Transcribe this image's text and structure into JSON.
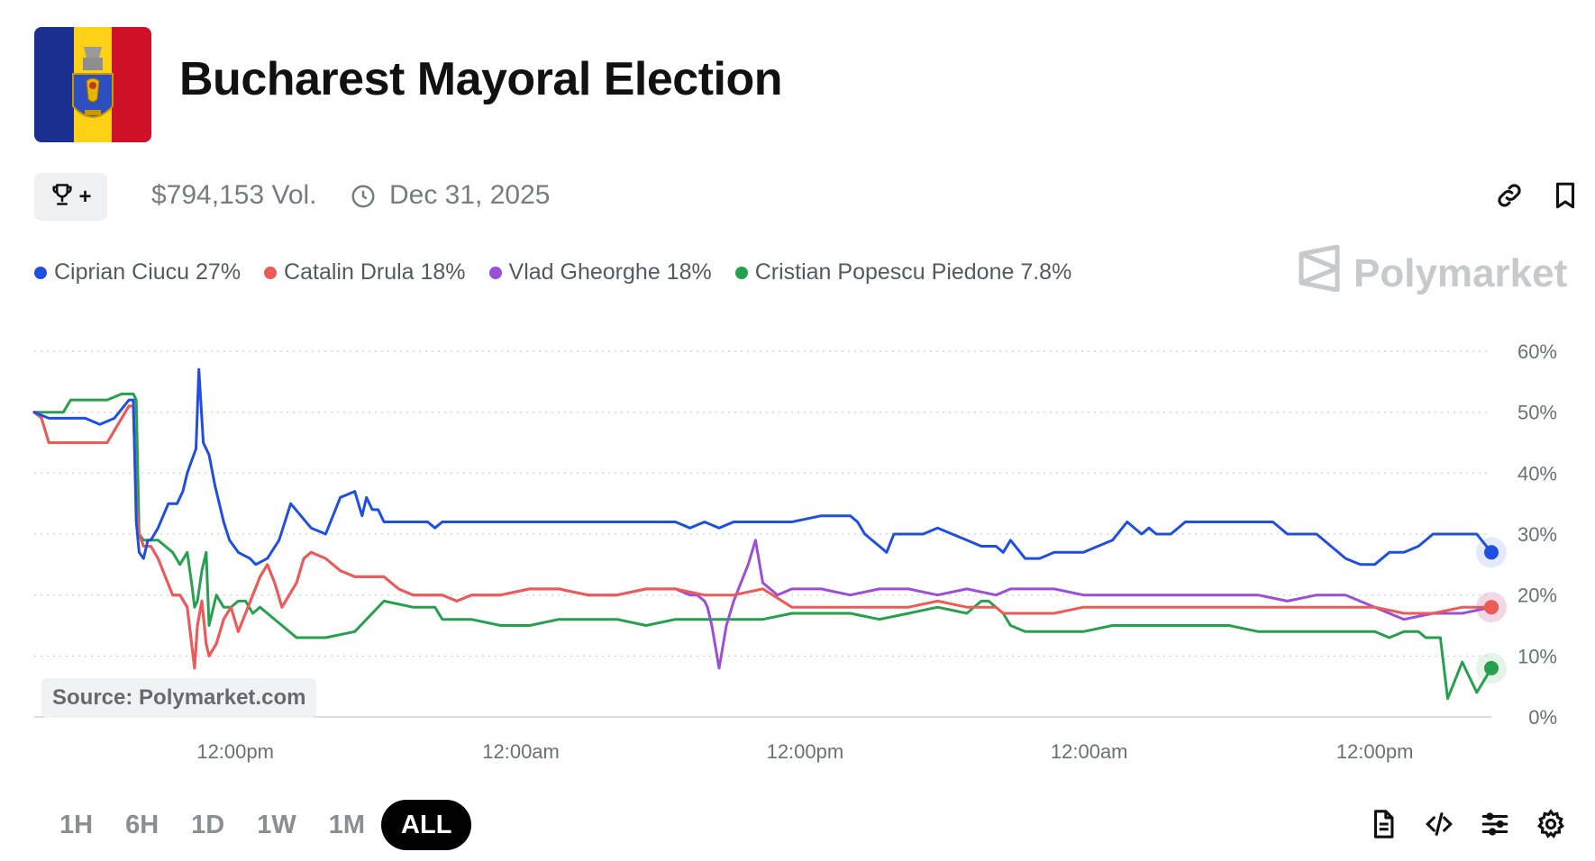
{
  "header": {
    "title": "Bucharest Mayoral Election",
    "volume": "$794,153 Vol.",
    "end_date": "Dec 31, 2025",
    "flag_colors": [
      "#1a2f8f",
      "#fcd116",
      "#ce1126"
    ]
  },
  "actions": {
    "trophy_label": "+",
    "icons": [
      "trophy-icon",
      "clock-icon",
      "link-icon",
      "bookmark-icon"
    ]
  },
  "brand": "Polymarket",
  "source": "Source: Polymarket.com",
  "time_ranges": [
    "1H",
    "6H",
    "1D",
    "1W",
    "1M",
    "ALL"
  ],
  "selected_range": "ALL",
  "bottom_icons": [
    "document-icon",
    "code-icon",
    "sliders-icon",
    "gear-icon"
  ],
  "chart_data": {
    "type": "line",
    "title": "",
    "xlabel": "",
    "ylabel": "",
    "ylim": [
      0,
      60
    ],
    "y_ticks": [
      "60%",
      "50%",
      "40%",
      "30%",
      "20%",
      "10%",
      "0%"
    ],
    "y_tick_values": [
      60,
      50,
      40,
      30,
      20,
      10,
      0
    ],
    "xlim": [
      0,
      1000
    ],
    "x_ticks": [
      {
        "label": "12:00pm",
        "x": 138
      },
      {
        "label": "12:00am",
        "x": 334
      },
      {
        "label": "12:00pm",
        "x": 529
      },
      {
        "label": "12:00am",
        "x": 724
      },
      {
        "label": "12:00pm",
        "x": 920
      }
    ],
    "grid": true,
    "legend_position": "top-left",
    "series": [
      {
        "name": "Ciprian Ciucu",
        "label": "Ciprian Ciucu 27%",
        "color": "#1f4fe0",
        "x": [
          0,
          10,
          25,
          35,
          45,
          55,
          65,
          68,
          70,
          72,
          75,
          78,
          80,
          85,
          92,
          98,
          102,
          105,
          108,
          111,
          113,
          116,
          118,
          120,
          124,
          127,
          130,
          134,
          140,
          148,
          152,
          160,
          168,
          176,
          190,
          200,
          210,
          220,
          225,
          228,
          232,
          236,
          240,
          246,
          252,
          258,
          264,
          270,
          275,
          280,
          285,
          290,
          295,
          300,
          330,
          360,
          380,
          400,
          420,
          440,
          450,
          460,
          470,
          480,
          500,
          520,
          540,
          550,
          560,
          565,
          570,
          580,
          585,
          590,
          600,
          610,
          620,
          630,
          640,
          650,
          660,
          665,
          670,
          680,
          690,
          700,
          720,
          740,
          750,
          760,
          765,
          770,
          780,
          790,
          800,
          820,
          830,
          840,
          850,
          860,
          870,
          880,
          890,
          900,
          910,
          920,
          930,
          940,
          950,
          960,
          970,
          980,
          990,
          1000
        ],
        "values": [
          50,
          49,
          49,
          49,
          48,
          49,
          52,
          52,
          32,
          27,
          26,
          29,
          29,
          31,
          35,
          35,
          37,
          40,
          42,
          44,
          57,
          45,
          44,
          43,
          38,
          35,
          32,
          29,
          27,
          26,
          25,
          26,
          29,
          35,
          31,
          30,
          36,
          37,
          33,
          36,
          34,
          34,
          32,
          32,
          32,
          32,
          32,
          32,
          31,
          32,
          32,
          32,
          32,
          32,
          32,
          32,
          32,
          32,
          32,
          32,
          31,
          32,
          31,
          32,
          32,
          32,
          33,
          33,
          33,
          32,
          30,
          28,
          27,
          30,
          30,
          30,
          31,
          30,
          29,
          28,
          28,
          27,
          29,
          26,
          26,
          27,
          27,
          29,
          32,
          30,
          31,
          30,
          30,
          32,
          32,
          32,
          32,
          32,
          32,
          30,
          30,
          30,
          28,
          26,
          25,
          25,
          27,
          27,
          28,
          30,
          30,
          30,
          30,
          27
        ]
      },
      {
        "name": "Catalin Drula",
        "label": "Catalin Drula 18%",
        "color": "#ee5b55",
        "x": [
          0,
          5,
          10,
          30,
          50,
          65,
          68,
          70,
          72,
          75,
          80,
          85,
          90,
          95,
          100,
          105,
          110,
          112,
          115,
          118,
          120,
          125,
          130,
          135,
          140,
          145,
          150,
          155,
          160,
          165,
          170,
          175,
          180,
          185,
          190,
          200,
          210,
          220,
          230,
          240,
          250,
          260,
          270,
          280,
          290,
          300,
          320,
          340,
          360,
          380,
          400,
          420,
          440,
          460,
          480,
          500,
          520,
          540,
          560,
          580,
          600,
          620,
          640,
          650,
          660,
          665,
          670,
          680,
          690,
          700,
          720,
          740,
          760,
          780,
          800,
          820,
          840,
          860,
          880,
          900,
          920,
          940,
          960,
          980,
          1000
        ],
        "values": [
          50,
          49,
          45,
          45,
          45,
          51,
          51,
          35,
          30,
          28,
          28,
          26,
          23,
          20,
          20,
          18,
          8,
          15,
          19,
          12,
          10,
          12,
          16,
          18,
          14,
          17,
          20,
          23,
          25,
          22,
          18,
          20,
          22,
          26,
          27,
          26,
          24,
          23,
          23,
          23,
          21,
          20,
          20,
          20,
          19,
          20,
          20,
          21,
          21,
          20,
          20,
          21,
          21,
          20,
          20,
          21,
          18,
          18,
          18,
          18,
          18,
          19,
          18,
          18,
          18,
          17,
          17,
          17,
          17,
          17,
          18,
          18,
          18,
          18,
          18,
          18,
          18,
          18,
          18,
          18,
          18,
          17,
          17,
          18,
          18
        ]
      },
      {
        "name": "Vlad Gheorghe",
        "label": "Vlad Gheorghe 18%",
        "color": "#9b4fd8",
        "x": [
          0,
          5,
          10,
          30,
          50,
          65,
          68,
          70,
          72,
          75,
          80,
          85,
          90,
          95,
          100,
          105,
          110,
          112,
          115,
          118,
          120,
          125,
          130,
          135,
          140,
          145,
          150,
          155,
          160,
          165,
          170,
          175,
          180,
          185,
          190,
          200,
          210,
          220,
          230,
          240,
          250,
          260,
          270,
          280,
          290,
          300,
          320,
          340,
          360,
          380,
          400,
          420,
          440,
          450,
          455,
          460,
          462,
          465,
          470,
          475,
          480,
          485,
          490,
          495,
          500,
          510,
          520,
          540,
          560,
          580,
          600,
          620,
          640,
          660,
          670,
          680,
          700,
          720,
          740,
          760,
          780,
          800,
          820,
          840,
          860,
          880,
          900,
          920,
          940,
          960,
          980,
          1000
        ],
        "values": [
          50,
          49,
          45,
          45,
          45,
          51,
          51,
          35,
          30,
          28,
          28,
          26,
          23,
          20,
          20,
          18,
          8,
          15,
          19,
          12,
          10,
          12,
          16,
          18,
          14,
          17,
          20,
          23,
          25,
          22,
          18,
          20,
          22,
          26,
          27,
          26,
          24,
          23,
          23,
          23,
          21,
          20,
          20,
          20,
          19,
          20,
          20,
          21,
          21,
          20,
          20,
          21,
          21,
          20,
          20,
          19,
          18,
          15,
          8,
          15,
          19,
          22,
          25,
          29,
          22,
          20,
          21,
          21,
          20,
          21,
          21,
          20,
          21,
          20,
          21,
          21,
          21,
          20,
          20,
          20,
          20,
          20,
          20,
          20,
          19,
          20,
          20,
          18,
          16,
          17,
          17,
          18
        ]
      },
      {
        "name": "Cristian Popescu Piedone",
        "label": "Cristian Popescu Piedone 7.8%",
        "color": "#27a04e",
        "x": [
          0,
          10,
          20,
          25,
          50,
          60,
          68,
          70,
          72,
          75,
          80,
          85,
          90,
          95,
          100,
          105,
          108,
          110,
          112,
          115,
          118,
          120,
          125,
          130,
          135,
          140,
          145,
          150,
          155,
          160,
          170,
          180,
          200,
          220,
          240,
          260,
          275,
          280,
          290,
          300,
          320,
          340,
          360,
          380,
          400,
          420,
          440,
          460,
          480,
          500,
          520,
          540,
          560,
          580,
          600,
          620,
          640,
          650,
          655,
          660,
          665,
          670,
          680,
          700,
          720,
          740,
          760,
          780,
          800,
          820,
          840,
          860,
          880,
          900,
          920,
          930,
          940,
          950,
          955,
          960,
          965,
          970,
          980,
          990,
          1000
        ],
        "values": [
          50,
          50,
          50,
          52,
          52,
          53,
          53,
          52,
          30,
          29,
          29,
          29,
          28,
          27,
          25,
          27,
          22,
          18,
          19,
          24,
          27,
          15,
          20,
          18,
          18,
          19,
          19,
          17,
          18,
          17,
          15,
          13,
          13,
          14,
          19,
          18,
          18,
          16,
          16,
          16,
          15,
          15,
          16,
          16,
          16,
          15,
          16,
          16,
          16,
          16,
          17,
          17,
          17,
          16,
          17,
          18,
          17,
          19,
          19,
          18,
          17,
          15,
          14,
          14,
          14,
          15,
          15,
          15,
          15,
          15,
          14,
          14,
          14,
          14,
          14,
          13,
          14,
          14,
          13,
          13,
          13,
          3,
          9,
          4,
          8
        ]
      }
    ]
  }
}
